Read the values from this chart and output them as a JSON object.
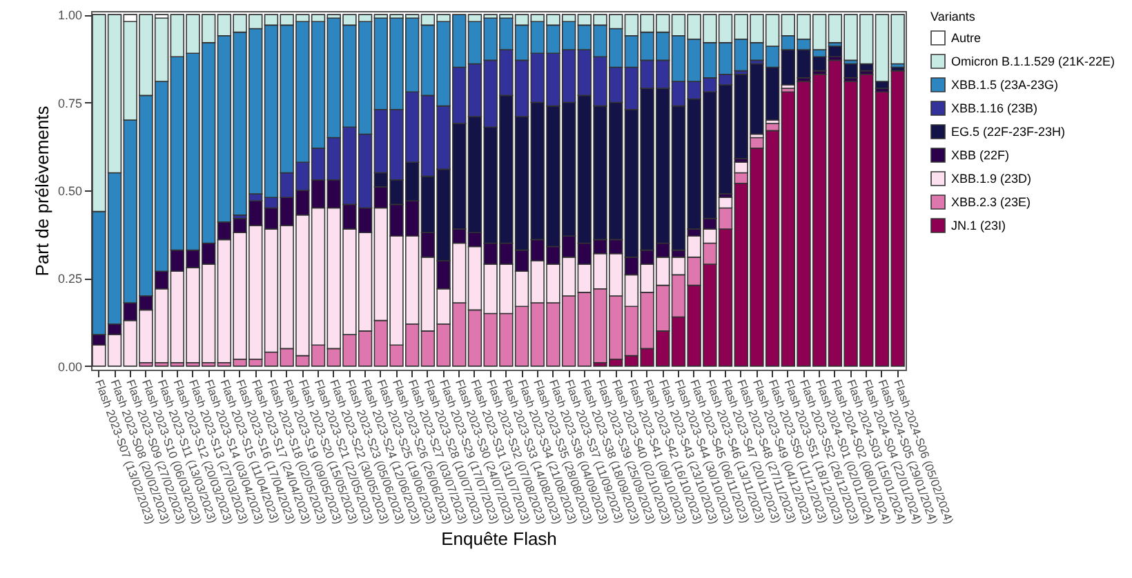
{
  "chart_data": {
    "type": "bar",
    "stacked": true,
    "xlabel": "Enquête Flash",
    "ylabel": "Part de prélèvements",
    "legend_title": "Variants",
    "legend": "right",
    "categories": [
      "Flash 2023-S07 (13/02/2023)",
      "Flash 2023-S08 (20/02/2023)",
      "Flash 2023-S09 (27/02/2023)",
      "Flash 2023-S10 (06/03/2023)",
      "Flash 2023-S11 (13/03/2023)",
      "Flash 2023-S12 (20/03/2023)",
      "Flash 2023-S13 (27/03/2023)",
      "Flash 2023-S14 (03/04/2023)",
      "Flash 2023-S15 (11/04/2023)",
      "Flash 2023-S16 (17/04/2023)",
      "Flash 2023-S17 (24/04/2023)",
      "Flash 2023-S18 (02/05/2023)",
      "Flash 2023-S19 (09/05/2023)",
      "Flash 2023-S20 (15/05/2023)",
      "Flash 2023-S21 (22/05/2023)",
      "Flash 2023-S22 (30/05/2023)",
      "Flash 2023-S23 (05/06/2023)",
      "Flash 2023-S24 (12/06/2023)",
      "Flash 2023-S25 (19/06/2023)",
      "Flash 2023-S26 (26/06/2023)",
      "Flash 2023-S27 (03/07/2023)",
      "Flash 2023-S28 (10/07/2023)",
      "Flash 2023-S29 (17/07/2023)",
      "Flash 2023-S30 (24/07/2023)",
      "Flash 2023-S31 (31/07/2023)",
      "Flash 2023-S32 (07/08/2023)",
      "Flash 2023-S33 (14/08/2023)",
      "Flash 2023-S34 (21/08/2023)",
      "Flash 2023-S35 (28/08/2023)",
      "Flash 2023-S36 (04/09/2023)",
      "Flash 2023-S37 (11/09/2023)",
      "Flash 2023-S38 (18/09/2023)",
      "Flash 2023-S39 (25/09/2023)",
      "Flash 2023-S40 (02/10/2023)",
      "Flash 2023-S41 (09/10/2023)",
      "Flash 2023-S42 (16/10/2023)",
      "Flash 2023-S43 (23/10/2023)",
      "Flash 2023-S44 (30/10/2023)",
      "Flash 2023-S45 (06/11/2023)",
      "Flash 2023-S46 (13/11/2023)",
      "Flash 2023-S47 (20/11/2023)",
      "Flash 2023-S48 (27/11/2023)",
      "Flash 2023-S49 (04/12/2023)",
      "Flash 2023-S50 (11/12/2023)",
      "Flash 2023-S51 (18/12/2023)",
      "Flash 2023-S52 (26/12/2023)",
      "Flash 2024-S01 (02/01/2024)",
      "Flash 2024-S02 (08/01/2024)",
      "Flash 2024-S03 (15/01/2024)",
      "Flash 2024-S04 (22/01/2024)",
      "Flash 2024-S05 (29/01/2024)",
      "Flash 2024-S06 (05/02/2024)"
    ],
    "ylim": [
      -0.01,
      1.01
    ],
    "yticks": [
      {
        "value": 0,
        "label": "0.00"
      },
      {
        "value": 0.25,
        "label": "0.25"
      },
      {
        "value": 0.5,
        "label": "0.50"
      },
      {
        "value": 0.75,
        "label": "0.75"
      },
      {
        "value": 1,
        "label": "1.00"
      }
    ],
    "series": [
      {
        "name": "JN.1 (23I)",
        "color": "#8e0152",
        "values": [
          0,
          0,
          0,
          0,
          0,
          0,
          0,
          0,
          0,
          0,
          0,
          0,
          0,
          0,
          0,
          0,
          0,
          0,
          0,
          0,
          0,
          0,
          0,
          0,
          0,
          0,
          0,
          0,
          0,
          0,
          0,
          0,
          0.01,
          0.02,
          0.03,
          0.05,
          0.1,
          0.14,
          0.23,
          0.29,
          0.39,
          0.52,
          0.62,
          0.67,
          0.78,
          0.81,
          0.83,
          0.87,
          0.81,
          0.83,
          0.78,
          0.84
        ]
      },
      {
        "name": "XBB.2.3 (23E)",
        "color": "#de77ae",
        "values": [
          0,
          0,
          0,
          0.01,
          0.01,
          0.01,
          0.01,
          0.01,
          0.01,
          0.02,
          0.02,
          0.04,
          0.05,
          0.03,
          0.06,
          0.05,
          0.09,
          0.1,
          0.13,
          0.06,
          0.12,
          0.1,
          0.12,
          0.18,
          0.16,
          0.15,
          0.15,
          0.17,
          0.18,
          0.18,
          0.2,
          0.21,
          0.21,
          0.18,
          0.14,
          0.16,
          0.13,
          0.12,
          0.08,
          0.06,
          0.06,
          0.03,
          0.03,
          0.02,
          0.01,
          0,
          0,
          0,
          0,
          0,
          0,
          0
        ]
      },
      {
        "name": "XBB.1.9 (23D)",
        "color": "#fde0ef",
        "values": [
          0.06,
          0.09,
          0.13,
          0.15,
          0.21,
          0.26,
          0.27,
          0.28,
          0.35,
          0.36,
          0.38,
          0.35,
          0.35,
          0.4,
          0.39,
          0.4,
          0.3,
          0.28,
          0.32,
          0.31,
          0.25,
          0.21,
          0.1,
          0.17,
          0.18,
          0.14,
          0.14,
          0.1,
          0.12,
          0.11,
          0.11,
          0.08,
          0.1,
          0.12,
          0.09,
          0.08,
          0.08,
          0.05,
          0.06,
          0.04,
          0.03,
          0.03,
          0.01,
          0.01,
          0.01,
          0,
          0,
          0,
          0,
          0,
          0,
          0
        ]
      },
      {
        "name": "XBB (22F)",
        "color": "#2d004b",
        "values": [
          0.03,
          0.03,
          0.05,
          0.04,
          0.05,
          0.06,
          0.05,
          0.06,
          0.05,
          0.04,
          0.07,
          0.06,
          0.08,
          0.07,
          0.08,
          0.08,
          0.07,
          0.07,
          0.06,
          0.09,
          0.1,
          0.07,
          0.08,
          0.04,
          0.04,
          0.06,
          0.06,
          0.06,
          0.06,
          0.05,
          0.06,
          0.06,
          0.04,
          0.04,
          0.05,
          0.04,
          0.04,
          0.02,
          0.02,
          0.03,
          0.01,
          0.01,
          0,
          0,
          0,
          0.01,
          0.01,
          0.01,
          0.01,
          0.01,
          0.01,
          0
        ]
      },
      {
        "name": "EG.5 (22F-23F-23H)",
        "color": "#131348",
        "values": [
          0,
          0,
          0,
          0,
          0,
          0,
          0,
          0,
          0,
          0,
          0,
          0,
          0,
          0,
          0,
          0,
          0,
          0,
          0.04,
          0.07,
          0.11,
          0.16,
          0.26,
          0.3,
          0.33,
          0.33,
          0.42,
          0.38,
          0.39,
          0.4,
          0.38,
          0.42,
          0.38,
          0.39,
          0.42,
          0.46,
          0.44,
          0.41,
          0.37,
          0.36,
          0.31,
          0.24,
          0.2,
          0.15,
          0.1,
          0.08,
          0.04,
          0.03,
          0.04,
          0.02,
          0.02,
          0.01
        ]
      },
      {
        "name": "XBB.1.16 (23B)",
        "color": "#32329a",
        "values": [
          0,
          0,
          0,
          0,
          0,
          0,
          0,
          0,
          0,
          0.01,
          0.02,
          0.03,
          0.07,
          0.08,
          0.09,
          0.12,
          0.22,
          0.21,
          0.18,
          0.2,
          0.2,
          0.23,
          0.18,
          0.16,
          0.15,
          0.19,
          0.13,
          0.16,
          0.14,
          0.15,
          0.15,
          0.13,
          0.14,
          0.1,
          0.12,
          0.08,
          0.08,
          0.07,
          0.05,
          0.04,
          0.03,
          0.01,
          0.01,
          0,
          0,
          0,
          0,
          0,
          0,
          0,
          0,
          0
        ]
      },
      {
        "name": "XBB.1.5 (23A-23G)",
        "color": "#2e86c1",
        "values": [
          0.35,
          0.43,
          0.52,
          0.57,
          0.54,
          0.55,
          0.56,
          0.57,
          0.53,
          0.52,
          0.47,
          0.49,
          0.42,
          0.4,
          0.36,
          0.34,
          0.29,
          0.32,
          0.26,
          0.26,
          0.21,
          0.2,
          0.24,
          0.15,
          0.12,
          0.12,
          0.09,
          0.1,
          0.09,
          0.08,
          0.08,
          0.07,
          0.09,
          0.11,
          0.09,
          0.08,
          0.08,
          0.13,
          0.12,
          0.1,
          0.09,
          0.09,
          0.05,
          0.06,
          0.04,
          0.03,
          0.02,
          0.01,
          0.01,
          0,
          0,
          0.01
        ]
      },
      {
        "name": "Omicron B.1.1.529 (21K-22E)",
        "color": "#c7eae5",
        "values": [
          0.56,
          0.45,
          0.28,
          0.23,
          0.18,
          0.12,
          0.11,
          0.08,
          0.06,
          0.05,
          0.04,
          0.03,
          0.03,
          0.02,
          0.02,
          0.01,
          0.03,
          0.02,
          0.01,
          0.01,
          0.01,
          0.03,
          0.02,
          0,
          0.02,
          0.01,
          0.01,
          0.03,
          0.02,
          0.03,
          0.02,
          0.03,
          0.03,
          0.04,
          0.06,
          0.05,
          0.05,
          0.06,
          0.07,
          0.08,
          0.08,
          0.07,
          0.08,
          0.09,
          0.06,
          0.07,
          0.1,
          0.08,
          0.13,
          0.14,
          0.19,
          0.14
        ]
      },
      {
        "name": "Autre",
        "color": "#ffffff",
        "values": [
          0,
          0,
          0.02,
          0,
          0.01,
          0,
          0,
          0,
          0,
          0,
          0,
          0,
          0,
          0,
          0,
          0,
          0,
          0,
          0,
          0,
          0,
          0,
          0,
          0,
          0,
          0,
          0,
          0,
          0,
          0,
          0,
          0,
          0,
          0,
          0,
          0,
          0,
          0,
          0,
          0,
          0,
          0,
          0,
          0,
          0,
          0,
          0,
          0,
          0,
          0,
          0,
          0
        ]
      }
    ]
  }
}
